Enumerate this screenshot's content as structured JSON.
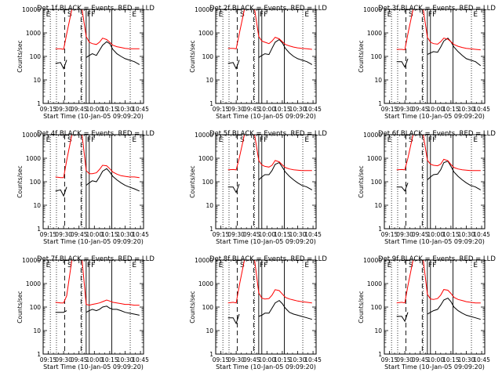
{
  "figure": {
    "xlabel": "Start Time (10-Jan-05 09:09:20)",
    "ylabel": "Counts/sec"
  },
  "chart_data": {
    "type": "line",
    "scale": "log-y",
    "x_unit": "time of day",
    "xlim": [
      "09:10",
      "10:48"
    ],
    "ylim": [
      1,
      10000
    ],
    "xticks": [
      "09:15",
      "09:30",
      "09:45",
      "10:00",
      "10:15",
      "10:30",
      "10:45"
    ],
    "yticks": [
      "1",
      "10",
      "100",
      "1000",
      "10000"
    ],
    "x_sample_times": [
      "09:17",
      "09:22",
      "09:27",
      "09:30",
      "09:33",
      "09:38",
      "09:43",
      "09:48",
      "09:52",
      "09:55",
      "09:58",
      "10:02",
      "10:05",
      "10:08",
      "10:12",
      "10:15",
      "10:18",
      "10:22",
      "10:26",
      "10:30",
      "10:34",
      "10:39",
      "10:44"
    ],
    "event_markers": {
      "dotted_times": [
        "09:17",
        "09:23",
        "09:48",
        "10:35"
      ],
      "dashed_times": [
        "09:31",
        "09:47"
      ],
      "solid_times": [
        "09:52",
        "09:55",
        "10:17"
      ],
      "segment_letters": [
        {
          "time": "09:12",
          "label": "E"
        },
        {
          "time": "09:33",
          "label": "S"
        },
        {
          "time": "09:52",
          "label": "F"
        },
        {
          "time": "09:56",
          "label": "F"
        },
        {
          "time": "10:36",
          "label": "E"
        }
      ]
    },
    "panels": [
      {
        "title": "Det 1f BLACK = Events, RED = LLD",
        "series": [
          {
            "name": "Events",
            "color": "#000000",
            "values": [
              null,
              50,
              55,
              30,
              70,
              null,
              null,
              null,
              90,
              110,
              130,
              110,
              180,
              300,
              420,
              350,
              200,
              130,
              100,
              80,
              70,
              60,
              45
            ]
          },
          {
            "name": "LLD",
            "color": "#ff0000",
            "values": [
              null,
              210,
              210,
              200,
              900,
              10000,
              10000,
              10000,
              700,
              400,
              350,
              320,
              400,
              600,
              520,
              400,
              300,
              260,
              240,
              220,
              210,
              210,
              210
            ]
          }
        ]
      },
      {
        "title": "Det 2f BLACK = Events, RED = LLD",
        "series": [
          {
            "name": "Events",
            "color": "#000000",
            "values": [
              null,
              50,
              55,
              30,
              70,
              null,
              null,
              null,
              90,
              110,
              130,
              120,
              220,
              400,
              520,
              380,
              220,
              140,
              100,
              80,
              70,
              60,
              45
            ]
          },
          {
            "name": "LLD",
            "color": "#ff0000",
            "values": [
              null,
              220,
              220,
              210,
              900,
              10000,
              10000,
              10000,
              700,
              450,
              400,
              350,
              450,
              650,
              560,
              420,
              320,
              280,
              250,
              230,
              220,
              210,
              200
            ]
          }
        ]
      },
      {
        "title": "Det 3f BLACK = Events, RED = LLD",
        "series": [
          {
            "name": "Events",
            "color": "#000000",
            "values": [
              null,
              60,
              60,
              35,
              80,
              null,
              null,
              null,
              120,
              140,
              160,
              150,
              250,
              450,
              600,
              420,
              250,
              160,
              110,
              80,
              70,
              60,
              40
            ]
          },
          {
            "name": "LLD",
            "color": "#ff0000",
            "values": [
              null,
              200,
              200,
              190,
              900,
              10000,
              10000,
              10000,
              650,
              400,
              350,
              330,
              420,
              600,
              540,
              420,
              320,
              270,
              240,
              220,
              210,
              200,
              190
            ]
          }
        ]
      },
      {
        "title": "Det 4f BLACK = Events, RED = LLD",
        "series": [
          {
            "name": "Events",
            "color": "#000000",
            "values": [
              null,
              40,
              45,
              25,
              60,
              null,
              null,
              null,
              70,
              90,
              110,
              100,
              160,
              280,
              360,
              260,
              170,
              120,
              90,
              70,
              60,
              50,
              40
            ]
          },
          {
            "name": "LLD",
            "color": "#ff0000",
            "values": [
              null,
              160,
              150,
              150,
              800,
              10000,
              10000,
              10000,
              300,
              220,
              220,
              240,
              330,
              500,
              480,
              360,
              260,
              210,
              180,
              170,
              160,
              160,
              150
            ]
          }
        ]
      },
      {
        "title": "Det 5f BLACK = Events, RED = LLD",
        "series": [
          {
            "name": "Events",
            "color": "#000000",
            "values": [
              null,
              60,
              60,
              35,
              80,
              null,
              null,
              null,
              120,
              160,
              200,
              200,
              300,
              550,
              650,
              420,
              260,
              170,
              120,
              90,
              70,
              60,
              45
            ]
          },
          {
            "name": "LLD",
            "color": "#ff0000",
            "values": [
              null,
              320,
              330,
              320,
              1000,
              10000,
              10000,
              10000,
              800,
              520,
              450,
              420,
              500,
              800,
              700,
              520,
              400,
              350,
              320,
              310,
              300,
              300,
              300
            ]
          }
        ]
      },
      {
        "title": "Det 6f BLACK = Events, RED = LLD",
        "series": [
          {
            "name": "Events",
            "color": "#000000",
            "values": [
              null,
              60,
              60,
              40,
              90,
              null,
              null,
              null,
              120,
              160,
              200,
              210,
              320,
              650,
              750,
              450,
              260,
              170,
              120,
              90,
              70,
              60,
              45
            ]
          },
          {
            "name": "LLD",
            "color": "#ff0000",
            "values": [
              null,
              320,
              330,
              320,
              1000,
              10000,
              10000,
              10000,
              820,
              560,
              500,
              480,
              560,
              900,
              780,
              540,
              400,
              350,
              320,
              310,
              300,
              300,
              300
            ]
          }
        ]
      },
      {
        "title": "Det 7f BLACK = Events, RED = LLD",
        "series": [
          {
            "name": "Events",
            "color": "#000000",
            "values": [
              null,
              60,
              60,
              60,
              70,
              null,
              null,
              null,
              60,
              70,
              80,
              70,
              80,
              100,
              110,
              90,
              80,
              80,
              70,
              60,
              55,
              50,
              45
            ]
          },
          {
            "name": "LLD",
            "color": "#ff0000",
            "values": [
              null,
              160,
              150,
              150,
              300,
              10000,
              10000,
              10000,
              130,
              120,
              130,
              140,
              150,
              170,
              200,
              180,
              160,
              150,
              140,
              130,
              130,
              120,
              120
            ]
          }
        ]
      },
      {
        "title": "Det 8f BLACK = Events, RED = LLD",
        "series": [
          {
            "name": "Events",
            "color": "#000000",
            "values": [
              null,
              35,
              35,
              20,
              50,
              null,
              null,
              null,
              40,
              45,
              55,
              55,
              90,
              150,
              190,
              140,
              90,
              60,
              50,
              45,
              40,
              35,
              30
            ]
          },
          {
            "name": "LLD",
            "color": "#ff0000",
            "values": [
              null,
              150,
              160,
              150,
              800,
              10000,
              10000,
              10000,
              400,
              240,
              220,
              230,
              320,
              550,
              500,
              360,
              260,
              220,
              200,
              180,
              170,
              160,
              150
            ]
          }
        ]
      },
      {
        "title": "Det 9f BLACK = Events, RED = LLD",
        "series": [
          {
            "name": "Events",
            "color": "#000000",
            "values": [
              null,
              40,
              40,
              25,
              60,
              null,
              null,
              null,
              50,
              60,
              70,
              80,
              120,
              200,
              240,
              170,
              100,
              70,
              55,
              45,
              40,
              35,
              30
            ]
          },
          {
            "name": "LLD",
            "color": "#ff0000",
            "values": [
              null,
              150,
              160,
              150,
              800,
              10000,
              10000,
              10000,
              350,
              220,
              210,
              230,
              320,
              560,
              520,
              380,
              260,
              210,
              190,
              170,
              160,
              150,
              150
            ]
          }
        ]
      }
    ]
  }
}
